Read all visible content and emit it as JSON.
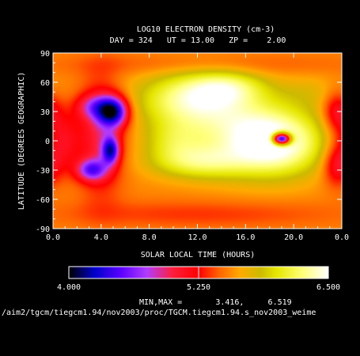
{
  "chart_data": {
    "type": "heatmap",
    "title": "LOG10 ELECTRON DENSITY (cm-3)",
    "subtitle": "DAY = 324   UT = 13.00   ZP =    2.00",
    "xlabel": "SOLAR LOCAL TIME (HOURS)",
    "ylabel": "LATITUDE (DEGREES GEOGRAPHIC)",
    "x_ticks": [
      "0.0",
      "4.0",
      "8.0",
      "12.0",
      "16.0",
      "20.0",
      "0.0"
    ],
    "y_ticks": [
      "90",
      "60",
      "30",
      "0",
      "-30",
      "-60",
      "-90"
    ],
    "xlim": [
      0,
      24
    ],
    "ylim": [
      -90,
      90
    ],
    "colorbar": {
      "min_label": "4.000",
      "mid_label": "5.250",
      "max_label": "6.500",
      "range": [
        4.0,
        6.5
      ]
    },
    "minmax_text": "MIN,MAX =       3.416,     6.519",
    "min": 3.416,
    "max": 6.519,
    "footer_path": "/aim2/tgcm/tiegcm1.94/nov2003/proc/TGCM.tiegcm1.94.s_nov2003_weime",
    "background_value": 5.55,
    "features": [
      {
        "x": 11.5,
        "y": 42,
        "sx": 3.2,
        "sy": 20,
        "amp": 0.75
      },
      {
        "x": 14.5,
        "y": 55,
        "sx": 2.2,
        "sy": 12,
        "amp": 0.45
      },
      {
        "x": 16.5,
        "y": 5,
        "sx": 3.5,
        "sy": 26,
        "amp": 0.75
      },
      {
        "x": 12.0,
        "y": -22,
        "sx": 2.8,
        "sy": 12,
        "amp": 0.5
      },
      {
        "x": 19.0,
        "y": -5,
        "sx": 2.5,
        "sy": 22,
        "amp": 0.55
      },
      {
        "x": 10.0,
        "y": 0,
        "sx": 1.8,
        "sy": 15,
        "amp": 0.35
      },
      {
        "x": 21.5,
        "y": 50,
        "sx": 2.0,
        "sy": 12,
        "amp": 0.15
      },
      {
        "x": 5.0,
        "y": 30,
        "sx": 0.9,
        "sy": 11,
        "amp": -1.25
      },
      {
        "x": 3.3,
        "y": 35,
        "sx": 1.0,
        "sy": 9,
        "amp": -0.5
      },
      {
        "x": 4.8,
        "y": -10,
        "sx": 0.5,
        "sy": 10,
        "amp": -1.0
      },
      {
        "x": 3.2,
        "y": -30,
        "sx": 0.9,
        "sy": 8,
        "amp": -0.8
      },
      {
        "x": 4.0,
        "y": 5,
        "sx": 1.3,
        "sy": 40,
        "amp": -0.55
      },
      {
        "x": 0.8,
        "y": 0,
        "sx": 1.0,
        "sy": 22,
        "amp": -0.45
      },
      {
        "x": 23.5,
        "y": 30,
        "sx": 0.8,
        "sy": 15,
        "amp": -0.45
      },
      {
        "x": 23.5,
        "y": -25,
        "sx": 0.8,
        "sy": 15,
        "amp": -0.45
      },
      {
        "x": 19.0,
        "y": 2,
        "sx": 0.55,
        "sy": 4.5,
        "amp": -2.2
      },
      {
        "x": 12.0,
        "y": -75,
        "sx": 9.0,
        "sy": 10,
        "amp": -0.2
      },
      {
        "x": 12.0,
        "y": 78,
        "sx": 9.0,
        "sy": 8,
        "amp": -0.15
      }
    ],
    "colormap": [
      [
        4.0,
        "#000000"
      ],
      [
        4.25,
        "#0000cc"
      ],
      [
        4.5,
        "#5a00ff"
      ],
      [
        4.75,
        "#b03cff"
      ],
      [
        5.0,
        "#ff1e3c"
      ],
      [
        5.25,
        "#ff0000"
      ],
      [
        5.45,
        "#ff6400"
      ],
      [
        5.65,
        "#ffaa00"
      ],
      [
        5.85,
        "#ccbb00"
      ],
      [
        6.0,
        "#e6e600"
      ],
      [
        6.25,
        "#ffff78"
      ],
      [
        6.5,
        "#ffffff"
      ]
    ]
  }
}
